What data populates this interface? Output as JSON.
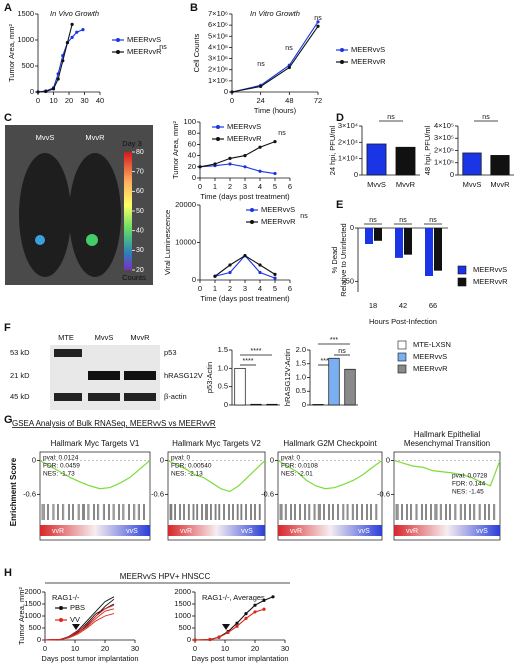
{
  "panel_labels": [
    "A",
    "B",
    "C",
    "D",
    "E",
    "F",
    "G",
    "H"
  ],
  "mouse_image": {
    "labels": [
      "MvvS",
      "MvvR"
    ],
    "scale_title": "Day 3",
    "scale_ticks": [
      80,
      70,
      60,
      50,
      40,
      30,
      20
    ],
    "scale_label": "Counts"
  },
  "blot": {
    "lanes": [
      "MTE",
      "MvvS",
      "MvvR"
    ],
    "sizes": [
      "53 kD",
      "21 kD",
      "45 kD"
    ],
    "proteins": [
      "p53",
      "hRASG12V",
      "β-actin"
    ]
  },
  "gsea_title": "GSEA Analysis of Bulk RNASeq, MEERvvS vs MEERvvR",
  "gsea_ylabel": "Enrichment Score",
  "h_title": "MEERvvS HPV+ HNSCC",
  "chart_data": [
    {
      "type": "line",
      "title": "In Vivo Growth",
      "ylabel": "Tumor Area, mm²",
      "x": [
        0,
        5,
        10,
        13,
        16,
        19,
        22,
        25,
        29
      ],
      "xlim": [
        0,
        40
      ],
      "xticks": [
        0,
        10,
        20,
        30,
        40
      ],
      "ylim": [
        0,
        1500
      ],
      "yticks": [
        0,
        500,
        1000,
        1500
      ],
      "series": [
        {
          "name": "MEERvvS",
          "color": "#1a35e6",
          "values": [
            0,
            20,
            80,
            350,
            700,
            950,
            1050,
            1150,
            1200
          ]
        },
        {
          "name": "MEERvvR",
          "color": "#111111",
          "values": [
            0,
            10,
            60,
            250,
            600,
            950,
            1300,
            null,
            null
          ]
        }
      ],
      "annotations": [
        "ns"
      ]
    },
    {
      "type": "line",
      "title": "In Vitro Growth",
      "ylabel": "Cell Counts",
      "xlabel": "Time (hours)",
      "x": [
        0,
        24,
        48,
        72
      ],
      "xlim": [
        0,
        72
      ],
      "xticks": [
        0,
        24,
        48,
        72
      ],
      "ylim": [
        0,
        7000000
      ],
      "yticks": [
        0,
        {
          "value": 1000000,
          "label": "1×10⁶"
        },
        {
          "value": 2000000,
          "label": "2×10⁶"
        },
        {
          "value": 3000000,
          "label": "3×10⁶"
        },
        {
          "value": 4000000,
          "label": "4×10⁶"
        },
        {
          "value": 5000000,
          "label": "5×10⁶"
        },
        {
          "value": 6000000,
          "label": "6×10⁶"
        },
        {
          "value": 7000000,
          "label": "7×10⁶"
        }
      ],
      "series": [
        {
          "name": "MEERvvS",
          "color": "#1a35e6",
          "values": [
            0,
            600000,
            2400000,
            6300000
          ]
        },
        {
          "name": "MEERvvR",
          "color": "#111111",
          "values": [
            0,
            500000,
            2200000,
            5900000
          ]
        }
      ],
      "annotations": [
        "ns",
        "ns",
        "ns"
      ]
    },
    {
      "type": "line",
      "ylabel": "Tumor Area, mm²",
      "xlabel": "Time (days post treatment)",
      "x": [
        0,
        1,
        2,
        3,
        4,
        5
      ],
      "xlim": [
        0,
        6
      ],
      "xticks": [
        0,
        1,
        2,
        3,
        4,
        5,
        6
      ],
      "ylim": [
        0,
        100
      ],
      "yticks": [
        0,
        20,
        40,
        60,
        80,
        100
      ],
      "series": [
        {
          "name": "MEERvvS",
          "color": "#1a35e6",
          "values": [
            20,
            22,
            25,
            20,
            12,
            8
          ]
        },
        {
          "name": "MEERvvR",
          "color": "#111111",
          "values": [
            20,
            25,
            35,
            40,
            55,
            65
          ]
        }
      ],
      "annotations": [
        "ns"
      ]
    },
    {
      "type": "line",
      "ylabel": "Viral Luminescence",
      "xlabel": "Time (days post treatment)",
      "x": [
        1,
        2,
        3,
        4,
        5
      ],
      "xlim": [
        0,
        6
      ],
      "xticks": [
        0,
        1,
        2,
        3,
        4,
        5,
        6
      ],
      "ylim": [
        0,
        20000
      ],
      "yticks": [
        0,
        10000,
        20000
      ],
      "series": [
        {
          "name": "MEERvvS",
          "color": "#1a35e6",
          "values": [
            1000,
            2000,
            6500,
            2000,
            500
          ]
        },
        {
          "name": "MEERvvR",
          "color": "#111111",
          "values": [
            1000,
            4000,
            6500,
            4000,
            1500
          ]
        }
      ],
      "annotations": [
        "ns"
      ]
    },
    {
      "type": "bar",
      "ylabel": "24 hpi, PFU/ml",
      "categories": [
        "MvvS",
        "MvvR"
      ],
      "values": [
        19000,
        17000
      ],
      "colors": [
        "#1a35e6",
        "#111111"
      ],
      "ylim": [
        0,
        30000
      ],
      "yticks": [
        0,
        {
          "value": 10000,
          "label": "1×10⁴"
        },
        {
          "value": 20000,
          "label": "2×10⁴"
        },
        {
          "value": 30000,
          "label": "3×10⁴"
        }
      ],
      "annotations": [
        "ns"
      ]
    },
    {
      "type": "bar",
      "ylabel": "48 hpi, PFU/ml",
      "categories": [
        "MvvS",
        "MvvR"
      ],
      "values": [
        180000,
        160000
      ],
      "colors": [
        "#1a35e6",
        "#111111"
      ],
      "ylim": [
        0,
        400000
      ],
      "yticks": [
        0,
        {
          "value": 100000,
          "label": "1×10⁵"
        },
        {
          "value": 200000,
          "label": "2×10⁵"
        },
        {
          "value": 300000,
          "label": "3×10⁵"
        },
        {
          "value": 400000,
          "label": "4×10⁵"
        }
      ],
      "annotations": [
        "ns"
      ]
    },
    {
      "type": "grouped_bar",
      "ylabel": [
        "% Dead",
        "Relative to Uninfected"
      ],
      "xlabel": "Hours Post-Infection",
      "categories": [
        "18",
        "42",
        "66"
      ],
      "ylim": [
        -60,
        0
      ],
      "yticks": [
        0,
        -50
      ],
      "series": [
        {
          "name": "MEERvvS",
          "color": "#1a35e6",
          "values": [
            -15,
            -28,
            -45
          ]
        },
        {
          "name": "MEERvvR",
          "color": "#111111",
          "values": [
            -12,
            -25,
            -40
          ]
        }
      ],
      "annotations": [
        "ns",
        "ns",
        "ns"
      ]
    },
    {
      "type": "bar",
      "ylabel": "p53:Actin",
      "values": [
        1.0,
        0.02,
        0.02
      ],
      "colors": [
        "#ffffff",
        "#7ab0f2",
        "#8a8a8a"
      ],
      "ylim": [
        0,
        1.5
      ],
      "yticks": [
        0,
        0.5,
        {
          "value": 1,
          "label": "1.0"
        },
        1.5
      ],
      "annotations": [
        "****",
        "****"
      ]
    },
    {
      "type": "bar",
      "ylabel": "hRASG12V:Actin",
      "values": [
        0.02,
        1.7,
        1.3
      ],
      "colors": [
        "#ffffff",
        "#7ab0f2",
        "#8a8a8a"
      ],
      "ylim": [
        0,
        2
      ],
      "yticks": [
        0,
        0.5,
        {
          "value": 1,
          "label": "1.0"
        },
        1.5,
        {
          "value": 2,
          "label": "2.0"
        }
      ],
      "annotations": [
        "****",
        "***",
        "ns"
      ],
      "legend": [
        {
          "name": "MTE-LXSN",
          "color": "#ffffff"
        },
        {
          "name": "MEERvvS",
          "color": "#7ab0f2"
        },
        {
          "name": "MEERvvR",
          "color": "#8a8a8a"
        }
      ]
    },
    {
      "type": "gsea",
      "title": [
        "Hallmark Myc Targets V1"
      ],
      "stats": [
        "pval: 0.0124",
        "FDR: 0.0459",
        "NES: -1.73"
      ],
      "x": [
        0,
        1,
        2,
        3,
        4,
        5,
        6,
        7,
        8,
        9,
        10,
        11
      ],
      "xlim": [
        0,
        11
      ],
      "ylim": [
        -0.7,
        0.15
      ],
      "yticks": [
        0,
        -0.6
      ],
      "values": [
        0,
        -0.1,
        -0.2,
        -0.3,
        -0.38,
        -0.45,
        -0.5,
        -0.48,
        -0.4,
        -0.3,
        -0.15,
        0
      ],
      "color": "#7bdc3c",
      "labels": [
        "vvR",
        "vvS"
      ]
    },
    {
      "type": "gsea",
      "title": [
        "Hallmark Myc Targets V2"
      ],
      "stats": [
        "pval: 0",
        "FDR: 0.00540",
        "NES: -2.13"
      ],
      "x": [
        0,
        1,
        2,
        3,
        4,
        5,
        6,
        7,
        8,
        9,
        10,
        11
      ],
      "xlim": [
        0,
        11
      ],
      "ylim": [
        -0.7,
        0.15
      ],
      "yticks": [
        0,
        -0.6
      ],
      "values": [
        0,
        -0.08,
        -0.15,
        -0.25,
        -0.3,
        -0.4,
        -0.5,
        -0.55,
        -0.45,
        -0.3,
        -0.15,
        0
      ],
      "color": "#7bdc3c",
      "labels": [
        "vvR",
        "vvS"
      ]
    },
    {
      "type": "gsea",
      "title": [
        "Hallmark G2M Checkpoint"
      ],
      "stats": [
        "pval: 0",
        "FDR: 0.0108",
        "NES: -2.01"
      ],
      "x": [
        0,
        1,
        2,
        3,
        4,
        5,
        6,
        7,
        8,
        9,
        10,
        11
      ],
      "xlim": [
        0,
        11
      ],
      "ylim": [
        -0.7,
        0.15
      ],
      "yticks": [
        0,
        -0.6
      ],
      "values": [
        0,
        -0.1,
        -0.2,
        -0.35,
        -0.45,
        -0.5,
        -0.48,
        -0.42,
        -0.35,
        -0.25,
        -0.12,
        0
      ],
      "color": "#7bdc3c",
      "labels": [
        "vvR",
        "vvS"
      ]
    },
    {
      "type": "gsea",
      "title": [
        "Hallmark Epithelial",
        "Mesenchymal Transition"
      ],
      "stats": [
        "pval: 0.0728",
        "FDR: 0.144",
        "NES: -1.45"
      ],
      "x": [
        0,
        1,
        2,
        3,
        4,
        5,
        6,
        7,
        8,
        9,
        10,
        11
      ],
      "xlim": [
        0,
        11
      ],
      "ylim": [
        -0.7,
        0.15
      ],
      "yticks": [
        0,
        -0.6
      ],
      "values": [
        0,
        -0.05,
        -0.1,
        -0.12,
        -0.18,
        -0.2,
        -0.22,
        -0.25,
        -0.3,
        -0.38,
        -0.45,
        0
      ],
      "color": "#7bdc3c",
      "labels": [
        "vvR",
        "vvS"
      ]
    },
    {
      "type": "spaghetti",
      "title": "RAG1-/-",
      "ylabel": "Tumor Area, mm²",
      "xlabel": "Days post tumor implantation",
      "x": [
        0,
        5,
        8,
        11,
        14,
        17,
        20,
        23
      ],
      "xlim": [
        0,
        30
      ],
      "xticks": [
        0,
        10,
        20,
        30
      ],
      "ylim": [
        0,
        2000
      ],
      "yticks": [
        0,
        500,
        1000,
        1500,
        2000
      ],
      "groups": [
        {
          "name": "PBS",
          "color": "#111111",
          "mice": [
            [
              0,
              20,
              150,
              400,
              800,
              1200,
              1600,
              1800
            ],
            [
              0,
              30,
              100,
              300,
              600,
              1000,
              1400,
              1700
            ],
            [
              0,
              10,
              120,
              350,
              700,
              1100,
              1300,
              1500
            ]
          ]
        },
        {
          "name": "VV",
          "color": "#e0261c",
          "mice": [
            [
              0,
              20,
              100,
              300,
              550,
              900,
              1200,
              1300
            ],
            [
              0,
              15,
              90,
              250,
              500,
              800,
              1000,
              1100
            ],
            [
              0,
              25,
              130,
              380,
              650,
              1000,
              1300,
              1450
            ]
          ]
        }
      ]
    },
    {
      "type": "line",
      "title": "RAG1-/-, Averages",
      "xlabel": "Days post tumor implantation",
      "x": [
        0,
        5,
        8,
        11,
        14,
        17,
        20,
        23,
        26
      ],
      "xlim": [
        0,
        30
      ],
      "xticks": [
        0,
        10,
        20,
        30
      ],
      "ylim": [
        0,
        2000
      ],
      "yticks": [
        0,
        500,
        1000,
        1500,
        2000
      ],
      "series": [
        {
          "name": "PBS",
          "color": "#111111",
          "values": [
            0,
            20,
            120,
            350,
            700,
            1100,
            1450,
            1650,
            1800
          ]
        },
        {
          "name": "VV",
          "color": "#e0261c",
          "values": [
            0,
            20,
            110,
            310,
            570,
            900,
            1170,
            1280,
            null
          ]
        }
      ]
    }
  ]
}
